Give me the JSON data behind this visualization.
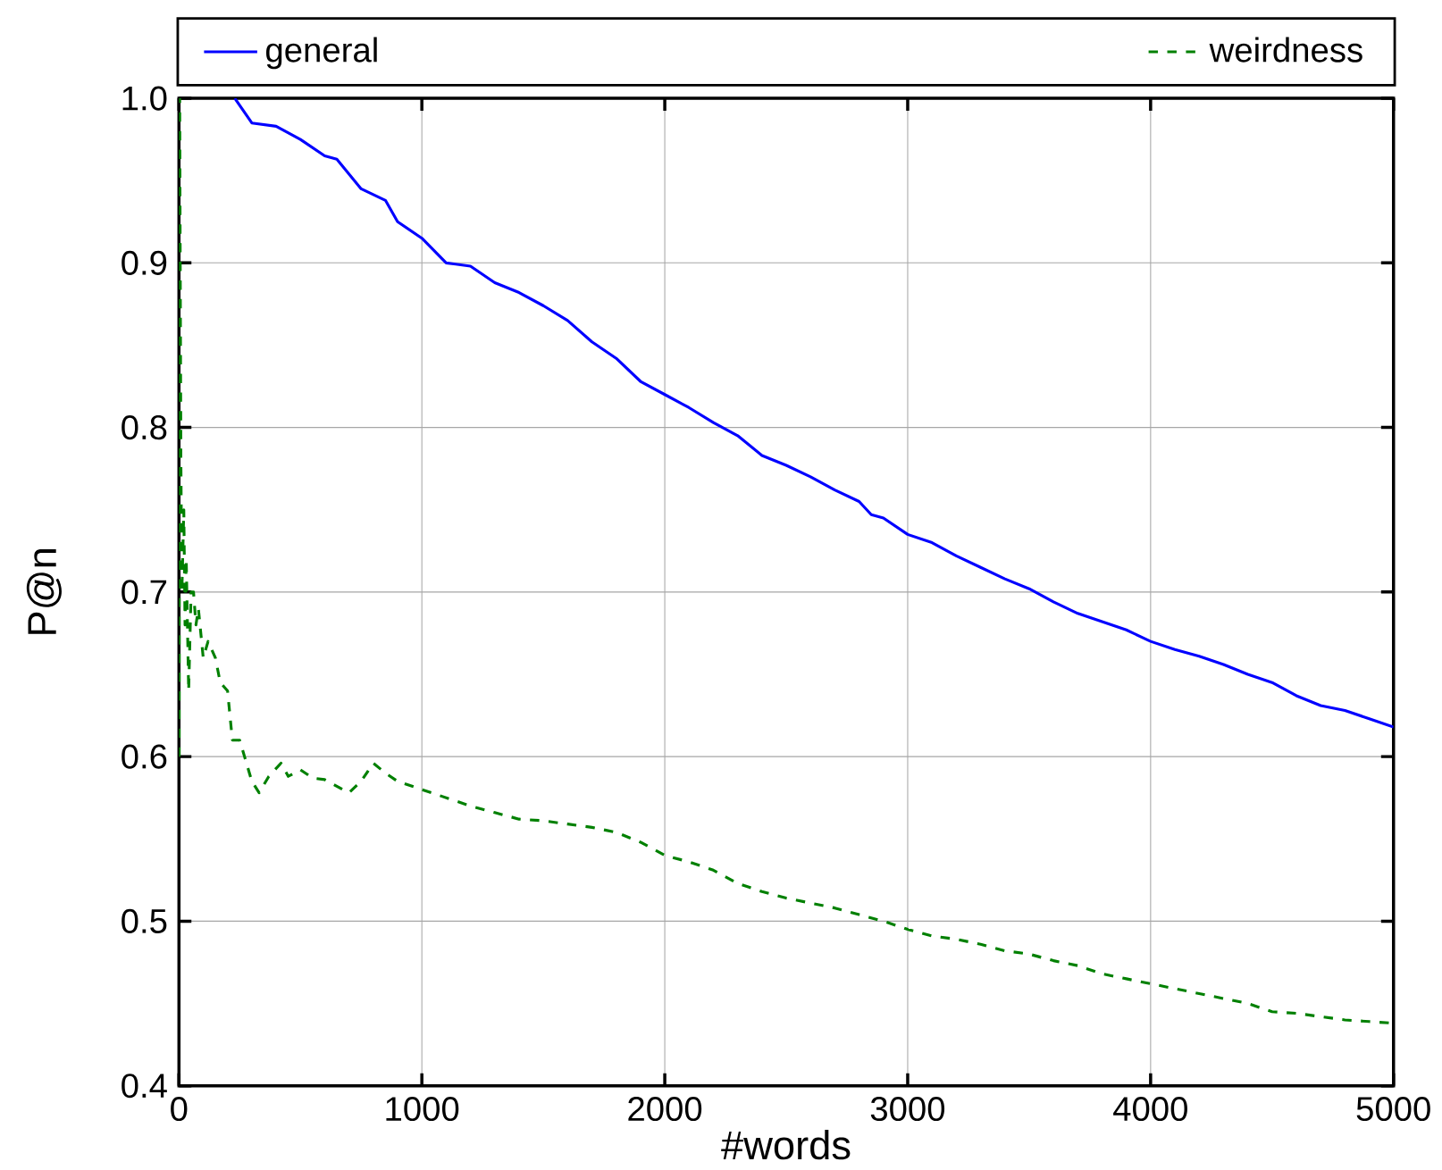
{
  "chart_data": {
    "type": "line",
    "xlabel": "#words",
    "ylabel": "P@n",
    "xlim": [
      0,
      5000
    ],
    "ylim": [
      0.4,
      1.0
    ],
    "xticks": [
      0,
      1000,
      2000,
      3000,
      4000,
      5000
    ],
    "yticks": [
      {
        "value": 0.4,
        "label": "0.4"
      },
      {
        "value": 0.5,
        "label": "0.5"
      },
      {
        "value": 0.6,
        "label": "0.6"
      },
      {
        "value": 0.7,
        "label": "0.7"
      },
      {
        "value": 0.8,
        "label": "0.8"
      },
      {
        "value": 0.9,
        "label": "0.9"
      },
      {
        "value": 1.0,
        "label": "1.0"
      }
    ],
    "grid": true,
    "legend": "top",
    "series": [
      {
        "name": "general",
        "color": "#0000ff",
        "line_style": "solid",
        "x": [
          230,
          300,
          400,
          500,
          600,
          650,
          750,
          850,
          900,
          1000,
          1100,
          1200,
          1300,
          1400,
          1500,
          1600,
          1700,
          1800,
          1850,
          1900,
          2000,
          2100,
          2200,
          2300,
          2400,
          2500,
          2600,
          2700,
          2800,
          2850,
          2900,
          3000,
          3100,
          3200,
          3300,
          3400,
          3500,
          3600,
          3700,
          3800,
          3900,
          4000,
          4100,
          4200,
          4300,
          4400,
          4500,
          4600,
          4700,
          4800,
          4900,
          5000
        ],
        "values": [
          1.0,
          0.985,
          0.983,
          0.975,
          0.965,
          0.963,
          0.945,
          0.938,
          0.925,
          0.915,
          0.9,
          0.898,
          0.888,
          0.882,
          0.874,
          0.865,
          0.852,
          0.842,
          0.835,
          0.828,
          0.82,
          0.812,
          0.803,
          0.795,
          0.783,
          0.777,
          0.77,
          0.762,
          0.755,
          0.747,
          0.745,
          0.735,
          0.73,
          0.722,
          0.715,
          0.708,
          0.702,
          0.694,
          0.687,
          0.682,
          0.677,
          0.67,
          0.665,
          0.661,
          0.656,
          0.65,
          0.645,
          0.637,
          0.631,
          0.628,
          0.623,
          0.618
        ]
      },
      {
        "name": "weirdness",
        "color": "#008000",
        "line_style": "dashed",
        "x": [
          1,
          3,
          8,
          12,
          20,
          25,
          30,
          40,
          50,
          60,
          70,
          80,
          100,
          120,
          150,
          170,
          200,
          220,
          250,
          270,
          300,
          330,
          370,
          420,
          450,
          500,
          550,
          600,
          650,
          700,
          750,
          800,
          850,
          900,
          1000,
          1100,
          1200,
          1300,
          1400,
          1500,
          1600,
          1700,
          1800,
          1900,
          2000,
          2100,
          2200,
          2300,
          2400,
          2500,
          2600,
          2700,
          2800,
          2900,
          3000,
          3100,
          3200,
          3300,
          3400,
          3500,
          3600,
          3700,
          3800,
          3900,
          4000,
          4100,
          4200,
          4300,
          4400,
          4500,
          4600,
          4700,
          4800,
          4900,
          5000
        ],
        "values": [
          0.6,
          1.0,
          0.78,
          0.7,
          0.75,
          0.68,
          0.72,
          0.64,
          0.7,
          0.7,
          0.68,
          0.69,
          0.66,
          0.67,
          0.66,
          0.645,
          0.64,
          0.61,
          0.61,
          0.6,
          0.585,
          0.578,
          0.588,
          0.596,
          0.588,
          0.592,
          0.587,
          0.586,
          0.582,
          0.578,
          0.585,
          0.596,
          0.59,
          0.585,
          0.58,
          0.575,
          0.57,
          0.566,
          0.562,
          0.561,
          0.559,
          0.557,
          0.554,
          0.548,
          0.54,
          0.536,
          0.531,
          0.523,
          0.518,
          0.514,
          0.511,
          0.508,
          0.504,
          0.5,
          0.495,
          0.491,
          0.489,
          0.486,
          0.482,
          0.48,
          0.476,
          0.473,
          0.468,
          0.465,
          0.462,
          0.459,
          0.456,
          0.453,
          0.45,
          0.445,
          0.444,
          0.442,
          0.44,
          0.439,
          0.438
        ]
      }
    ]
  }
}
